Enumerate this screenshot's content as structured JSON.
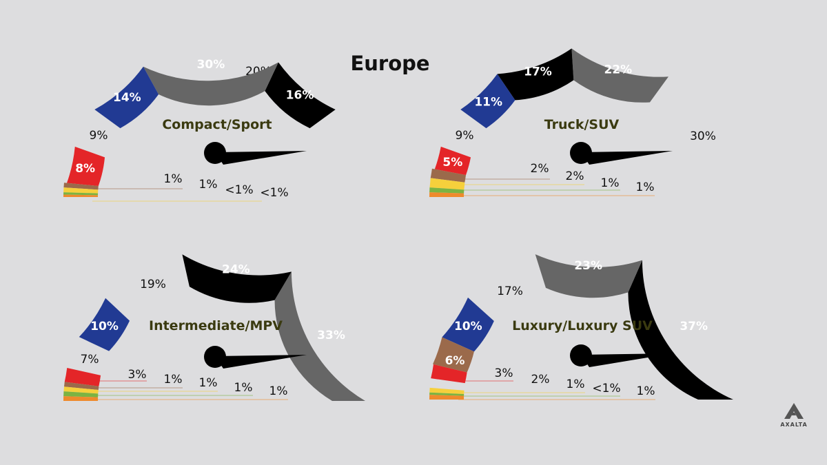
{
  "title": "Europe",
  "brand": "AXALTA",
  "colors": {
    "white": "#ffffff",
    "black": "#000000",
    "gray": "#666666",
    "blue": "#213a93",
    "red": "#e42528",
    "brown": "#9b6a4b",
    "yellow": "#f6d03c",
    "green": "#7cb342",
    "orange": "#ee8a2c"
  },
  "chart_data": [
    {
      "type": "pie",
      "title": "Compact/Sport",
      "series": [
        {
          "name": "",
          "color": "#ffffff",
          "value": 20,
          "display": "20%"
        },
        {
          "name": "",
          "color": "#000000",
          "value": 16,
          "display": "16%"
        },
        {
          "name": "",
          "color": "#666666",
          "value": 30,
          "display": "30%"
        },
        {
          "name": "",
          "color": "#213a93",
          "value": 14,
          "display": "14%"
        },
        {
          "name": "",
          "color": "#dddddf",
          "value": 9,
          "display": "9%"
        },
        {
          "name": "",
          "color": "#e42528",
          "value": 8,
          "display": "8%"
        },
        {
          "name": "",
          "color": "#9b6a4b",
          "value": 1,
          "display": "1%"
        },
        {
          "name": "",
          "color": "#f6d03c",
          "value": 1,
          "display": "1%"
        },
        {
          "name": "",
          "color": "#7cb342",
          "value": 0.5,
          "display": "<1%"
        },
        {
          "name": "",
          "color": "#ee8a2c",
          "value": 0.5,
          "display": "<1%"
        }
      ]
    },
    {
      "type": "pie",
      "title": "Truck/SUV",
      "series": [
        {
          "name": "",
          "color": "#ffffff",
          "value": 30,
          "display": "30%"
        },
        {
          "name": "",
          "color": "#666666",
          "value": 22,
          "display": "22%"
        },
        {
          "name": "",
          "color": "#000000",
          "value": 17,
          "display": "17%"
        },
        {
          "name": "",
          "color": "#213a93",
          "value": 11,
          "display": "11%"
        },
        {
          "name": "",
          "color": "#dddddf",
          "value": 9,
          "display": "9%"
        },
        {
          "name": "",
          "color": "#e42528",
          "value": 5,
          "display": "5%"
        },
        {
          "name": "",
          "color": "#9b6a4b",
          "value": 2,
          "display": "2%"
        },
        {
          "name": "",
          "color": "#f6d03c",
          "value": 2,
          "display": "2%"
        },
        {
          "name": "",
          "color": "#7cb342",
          "value": 1,
          "display": "1%"
        },
        {
          "name": "",
          "color": "#ee8a2c",
          "value": 1,
          "display": "1%"
        }
      ]
    },
    {
      "type": "pie",
      "title": "Intermediate/MPV",
      "series": [
        {
          "name": "",
          "color": "#666666",
          "value": 33,
          "display": "33%"
        },
        {
          "name": "",
          "color": "#000000",
          "value": 24,
          "display": "24%"
        },
        {
          "name": "",
          "color": "#ffffff",
          "value": 19,
          "display": "19%"
        },
        {
          "name": "",
          "color": "#213a93",
          "value": 10,
          "display": "10%"
        },
        {
          "name": "",
          "color": "#dddddf",
          "value": 7,
          "display": "7%"
        },
        {
          "name": "",
          "color": "#e42528",
          "value": 3,
          "display": "3%"
        },
        {
          "name": "",
          "color": "#9b6a4b",
          "value": 1,
          "display": "1%"
        },
        {
          "name": "",
          "color": "#f6d03c",
          "value": 1,
          "display": "1%"
        },
        {
          "name": "",
          "color": "#7cb342",
          "value": 1,
          "display": "1%"
        },
        {
          "name": "",
          "color": "#ee8a2c",
          "value": 1,
          "display": "1%"
        }
      ]
    },
    {
      "type": "pie",
      "title": "Luxury/Luxury SUV",
      "series": [
        {
          "name": "",
          "color": "#000000",
          "value": 37,
          "display": "37%"
        },
        {
          "name": "",
          "color": "#666666",
          "value": 23,
          "display": "23%"
        },
        {
          "name": "",
          "color": "#ffffff",
          "value": 17,
          "display": "17%"
        },
        {
          "name": "",
          "color": "#213a93",
          "value": 10,
          "display": "10%"
        },
        {
          "name": "",
          "color": "#9b6a4b",
          "value": 6,
          "display": "6%"
        },
        {
          "name": "",
          "color": "#e42528",
          "value": 3,
          "display": "3%"
        },
        {
          "name": "",
          "color": "#dddddf",
          "value": 2,
          "display": "2%"
        },
        {
          "name": "",
          "color": "#f6d03c",
          "value": 1,
          "display": "1%"
        },
        {
          "name": "",
          "color": "#7cb342",
          "value": 0.5,
          "display": "<1%"
        },
        {
          "name": "",
          "color": "#ee8a2c",
          "value": 1,
          "display": "1%"
        }
      ]
    }
  ]
}
